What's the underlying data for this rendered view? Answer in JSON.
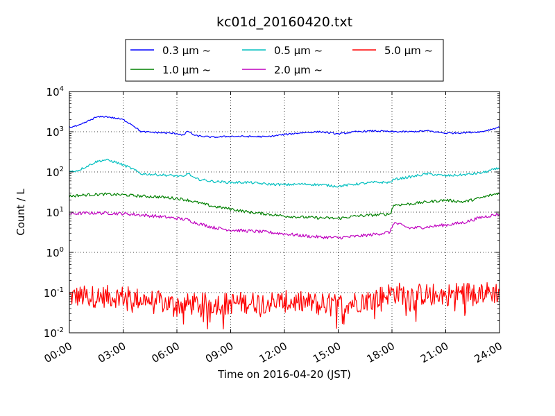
{
  "chart_data": {
    "type": "line",
    "title": "kc01d_20160420.txt",
    "xlabel": "Time on 2016-04-20 (JST)",
    "ylabel": "Count / L",
    "yscale": "log",
    "ylim": [
      0.01,
      10000
    ],
    "xlim_hours": [
      0,
      24
    ],
    "x_ticks": [
      "00:00",
      "03:00",
      "06:00",
      "09:00",
      "12:00",
      "15:00",
      "18:00",
      "21:00",
      "24:00"
    ],
    "y_ticks": [
      {
        "base": "10",
        "exp": "-2"
      },
      {
        "base": "10",
        "exp": "-1"
      },
      {
        "base": "10",
        "exp": "0"
      },
      {
        "base": "10",
        "exp": "1"
      },
      {
        "base": "10",
        "exp": "2"
      },
      {
        "base": "10",
        "exp": "3"
      },
      {
        "base": "10",
        "exp": "4"
      }
    ],
    "grid": true,
    "legend_position": "top",
    "series": [
      {
        "name": "0.3 μm ~",
        "color": "#0000ff",
        "noise": 0.02,
        "x": [
          0,
          0.5,
          1,
          1.5,
          2,
          2.5,
          3,
          3.5,
          4,
          5,
          6,
          6.4,
          6.6,
          7,
          8,
          9,
          10,
          11,
          12,
          13,
          14,
          15,
          16,
          17,
          18,
          19,
          20,
          21,
          22,
          23,
          24
        ],
        "y": [
          1300,
          1400,
          1800,
          2300,
          2400,
          2200,
          2000,
          1500,
          1000,
          950,
          900,
          820,
          1050,
          800,
          730,
          770,
          760,
          750,
          850,
          950,
          1000,
          880,
          1000,
          1050,
          1000,
          1000,
          1050,
          920,
          950,
          1000,
          1300
        ]
      },
      {
        "name": "0.5 μm ~",
        "color": "#00bfbf",
        "noise": 0.03,
        "x": [
          0,
          0.5,
          1,
          1.5,
          2,
          2.5,
          3,
          3.5,
          4,
          5,
          6,
          6.4,
          6.6,
          7,
          8,
          9,
          10,
          11,
          12,
          13,
          14,
          15,
          16,
          17,
          17.9,
          18.1,
          19,
          20,
          21,
          22,
          23,
          24
        ],
        "y": [
          100,
          110,
          140,
          180,
          200,
          180,
          150,
          120,
          90,
          85,
          80,
          75,
          95,
          68,
          58,
          55,
          55,
          50,
          48,
          50,
          48,
          44,
          50,
          55,
          55,
          65,
          75,
          90,
          80,
          85,
          95,
          125
        ]
      },
      {
        "name": "1.0 μm ~",
        "color": "#008000",
        "noise": 0.035,
        "x": [
          0,
          1,
          2,
          3,
          4,
          5,
          6,
          6.6,
          7,
          8,
          9,
          10,
          11,
          12,
          13,
          14,
          15,
          16,
          17,
          17.9,
          18.1,
          19,
          20,
          21,
          22,
          23,
          24
        ],
        "y": [
          25,
          27,
          28,
          27,
          25,
          24,
          22,
          20,
          18,
          14,
          12,
          10,
          9,
          8,
          7.5,
          7.2,
          7,
          8,
          8.5,
          9,
          15,
          16,
          18,
          20,
          18,
          23,
          30
        ]
      },
      {
        "name": "2.0 μm ~",
        "color": "#bf00bf",
        "noise": 0.04,
        "x": [
          0,
          1,
          2,
          3,
          4,
          5,
          6,
          6.6,
          7,
          8,
          9,
          10,
          11,
          12,
          13,
          14,
          15,
          16,
          17,
          17.9,
          18.1,
          19,
          20,
          21,
          22,
          23,
          24
        ],
        "y": [
          9,
          9.5,
          9.5,
          9.2,
          8.5,
          7.8,
          7,
          6.5,
          5.5,
          4.2,
          3.6,
          3.4,
          3.2,
          2.9,
          2.6,
          2.4,
          2.3,
          2.5,
          2.8,
          3.2,
          5.5,
          4,
          4.3,
          4.8,
          5.5,
          7.5,
          9
        ]
      },
      {
        "name": "5.0 μm ~",
        "color": "#ff0000",
        "noise": 0.28,
        "x": [
          0,
          3,
          6,
          9,
          12,
          15,
          17,
          18,
          19,
          21,
          22,
          24
        ],
        "y": [
          0.08,
          0.08,
          0.05,
          0.055,
          0.06,
          0.05,
          0.07,
          0.1,
          0.09,
          0.09,
          0.1,
          0.1
        ]
      }
    ]
  }
}
